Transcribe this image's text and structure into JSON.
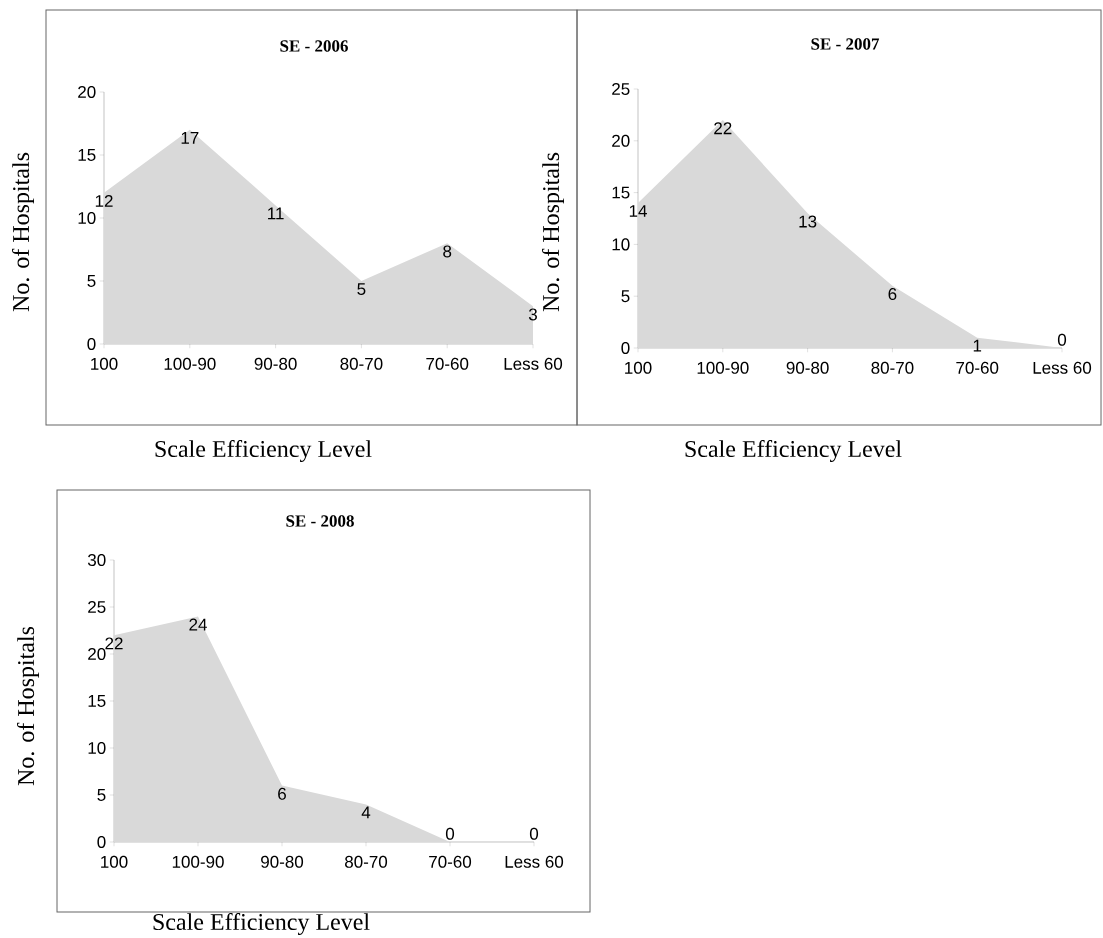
{
  "chart_data": [
    {
      "type": "area",
      "title": "SE - 2006",
      "xlabel": "Scale Efficiency Level",
      "ylabel": "No. of Hospitals",
      "categories": [
        "100",
        "100-90",
        "90-80",
        "80-70",
        "70-60",
        "Less 60"
      ],
      "values": [
        12,
        17,
        11,
        5,
        8,
        3
      ],
      "color": "#d9d9d9",
      "ylim": [
        0,
        20
      ],
      "yticks": [
        0,
        5,
        10,
        15,
        20
      ],
      "data_labels": true
    },
    {
      "type": "area",
      "title": "SE - 2007",
      "xlabel": "Scale Efficiency Level",
      "ylabel": "No. of Hospitals",
      "categories": [
        "100",
        "100-90",
        "90-80",
        "80-70",
        "70-60",
        "Less 60"
      ],
      "values": [
        14,
        22,
        13,
        6,
        1,
        0
      ],
      "color": "#d9d9d9",
      "ylim": [
        0,
        25
      ],
      "yticks": [
        0,
        5,
        10,
        15,
        20,
        25
      ],
      "data_labels": true
    },
    {
      "type": "area",
      "title": "SE - 2008",
      "xlabel": "Scale Efficiency Level",
      "ylabel": "No. of Hospitals",
      "categories": [
        "100",
        "100-90",
        "90-80",
        "80-70",
        "70-60",
        "Less 60"
      ],
      "values": [
        22,
        24,
        6,
        4,
        0,
        0
      ],
      "color": "#d9d9d9",
      "ylim": [
        0,
        30
      ],
      "yticks": [
        0,
        5,
        10,
        15,
        20,
        25,
        30
      ],
      "data_labels": true
    }
  ]
}
